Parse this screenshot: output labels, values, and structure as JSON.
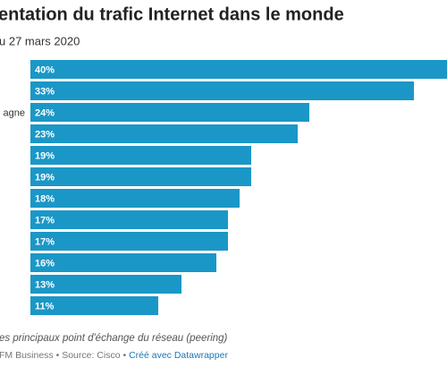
{
  "chart_data": {
    "type": "bar",
    "orientation": "horizontal",
    "title": "entation du trafic Internet dans le monde",
    "subtitle": "u 27 mars 2020",
    "categories": [
      null,
      null,
      "agne",
      null,
      null,
      null,
      null,
      null,
      null,
      null,
      null,
      null
    ],
    "values": [
      40,
      33,
      24,
      23,
      19,
      19,
      18,
      17,
      17,
      16,
      13,
      11
    ],
    "value_labels": [
      "40%",
      "33%",
      "24%",
      "23%",
      "19%",
      "19%",
      "18%",
      "17%",
      "17%",
      "16%",
      "13%",
      "11%"
    ],
    "color": "#1b97c7",
    "note": "es principaux point d'échange du réseau (peering)",
    "source": "FM Business • Source: Cisco • ",
    "credit": "Créé avec Datawrapper"
  }
}
